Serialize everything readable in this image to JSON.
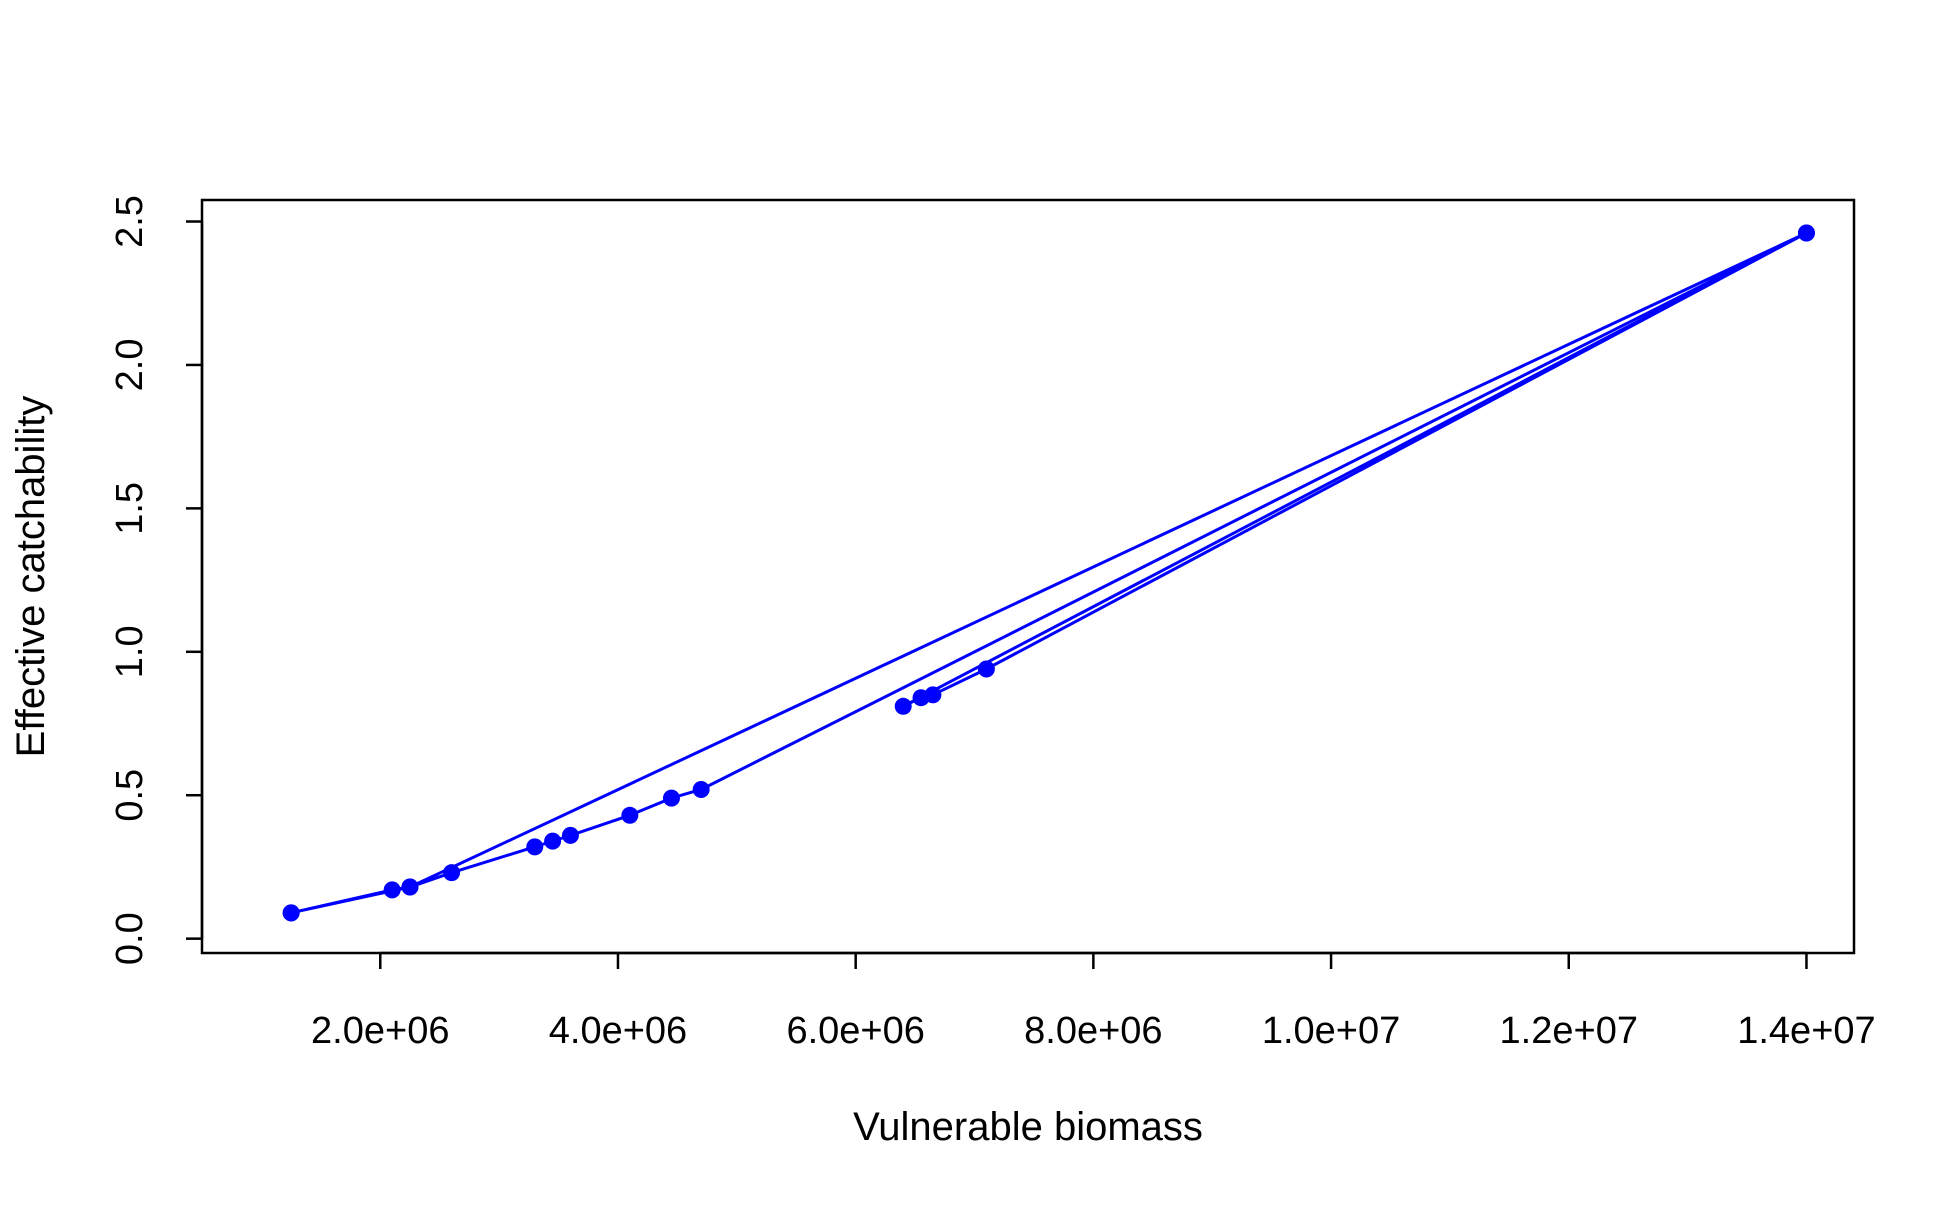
{
  "chart_data": {
    "type": "line",
    "title": "",
    "xlabel": "Vulnerable biomass",
    "ylabel": "Effective catchability",
    "xlim": [
      500000,
      14400000
    ],
    "ylim": [
      -0.05,
      2.575
    ],
    "xticks": [
      2000000,
      4000000,
      6000000,
      8000000,
      10000000,
      12000000,
      14000000
    ],
    "xtick_labels": [
      "2.0e+06",
      "4.0e+06",
      "6.0e+06",
      "8.0e+06",
      "1.0e+07",
      "1.2e+07",
      "1.4e+07"
    ],
    "yticks": [
      0.0,
      0.5,
      1.0,
      1.5,
      2.0,
      2.5
    ],
    "ytick_labels": [
      "0.0",
      "0.5",
      "1.0",
      "1.5",
      "2.0",
      "2.5"
    ],
    "grid": false,
    "legend": "none",
    "series": [
      {
        "color": "#0000ff",
        "marker": "filled-circle",
        "x": [
          1250000,
          2100000,
          2250000,
          2600000,
          3300000,
          3450000,
          3600000,
          4100000,
          4450000,
          4700000,
          14000000,
          7100000,
          6650000,
          6550000,
          6400000,
          14000000,
          2250000,
          1250000
        ],
        "y": [
          0.09,
          0.17,
          0.18,
          0.23,
          0.32,
          0.34,
          0.36,
          0.43,
          0.49,
          0.52,
          2.46,
          0.94,
          0.85,
          0.84,
          0.81,
          2.46,
          0.18,
          0.09
        ]
      }
    ]
  }
}
